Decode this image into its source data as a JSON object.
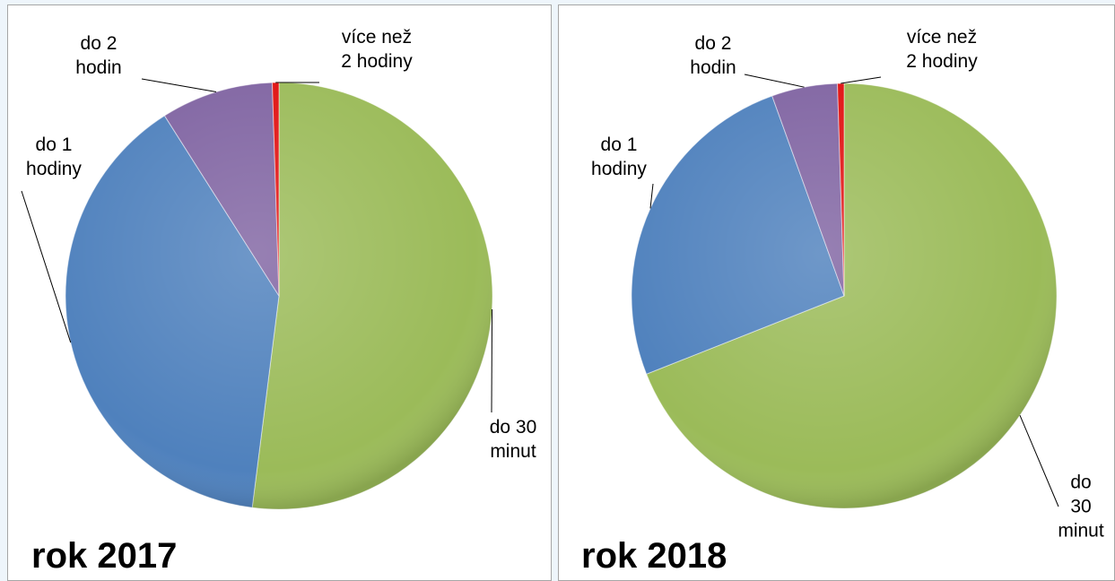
{
  "chart_data": [
    {
      "type": "pie",
      "title": "rok 2017",
      "categories": [
        "do 30\nminut",
        "do 1\nhodiny",
        "do 2\nhodin",
        "více než\n2 hodiny"
      ],
      "values": [
        52,
        39,
        8.5,
        0.5
      ],
      "colors": [
        "#9bbb59",
        "#4f81bd",
        "#8064a2",
        "#e01010"
      ]
    },
    {
      "type": "pie",
      "title": "rok 2018",
      "categories": [
        "do 30\nminut",
        "do 1\nhodiny",
        "do 2\nhodin",
        "více než\n2 hodiny"
      ],
      "values": [
        69,
        25.5,
        5,
        0.5
      ],
      "colors": [
        "#9bbb59",
        "#4f81bd",
        "#8064a2",
        "#e01010"
      ]
    }
  ]
}
